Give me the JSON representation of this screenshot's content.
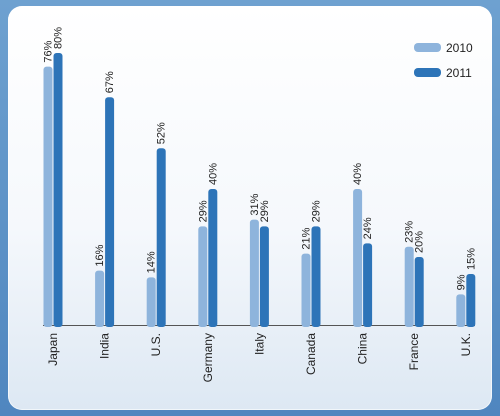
{
  "chart_data": {
    "type": "bar",
    "categories": [
      "Japan",
      "India",
      "U.S.",
      "Germany",
      "Italy",
      "Canada",
      "China",
      "France",
      "U.K."
    ],
    "series": [
      {
        "name": "2010",
        "values": [
          76,
          16,
          14,
          29,
          31,
          21,
          40,
          23,
          9
        ],
        "color": "#8eb4dc"
      },
      {
        "name": "2011",
        "values": [
          80,
          67,
          52,
          40,
          29,
          29,
          24,
          20,
          15
        ],
        "color": "#2d74b8"
      }
    ],
    "value_suffix": "%",
    "ylim": [
      0,
      80
    ],
    "grid": false,
    "legend": "top-right",
    "title": "",
    "xlabel": "",
    "ylabel": ""
  }
}
